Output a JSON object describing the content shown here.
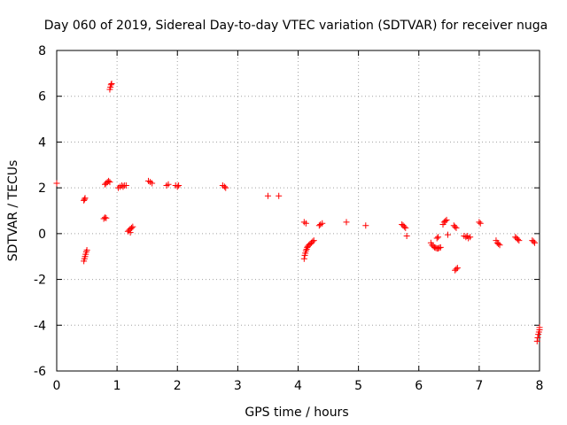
{
  "chart_data": {
    "type": "scatter",
    "title": "Day 060 of 2019, Sidereal Day-to-day VTEC variation (SDTVAR) for receiver nuga",
    "xlabel": "GPS time / hours",
    "ylabel": "SDTVAR / TECUs",
    "xlim": [
      0,
      8
    ],
    "ylim": [
      -6,
      8
    ],
    "xticks": [
      0,
      1,
      2,
      3,
      4,
      5,
      6,
      7,
      8
    ],
    "yticks": [
      -6,
      -4,
      -2,
      0,
      2,
      4,
      6,
      8
    ],
    "grid": true,
    "marker": "plus",
    "color": "#ff0000",
    "series": [
      {
        "name": "SDTVAR",
        "points": [
          [
            0.0,
            2.2
          ],
          [
            0.45,
            1.45
          ],
          [
            0.46,
            1.5
          ],
          [
            0.47,
            1.55
          ],
          [
            0.45,
            -1.2
          ],
          [
            0.46,
            -1.1
          ],
          [
            0.47,
            -1.0
          ],
          [
            0.48,
            -0.9
          ],
          [
            0.49,
            -0.8
          ],
          [
            0.5,
            -0.72
          ],
          [
            0.78,
            0.65
          ],
          [
            0.8,
            0.7
          ],
          [
            0.82,
            0.68
          ],
          [
            0.8,
            2.15
          ],
          [
            0.82,
            2.2
          ],
          [
            0.84,
            2.25
          ],
          [
            0.86,
            2.3
          ],
          [
            0.88,
            2.25
          ],
          [
            0.88,
            6.3
          ],
          [
            0.89,
            6.4
          ],
          [
            0.9,
            6.5
          ],
          [
            0.91,
            6.55
          ],
          [
            1.02,
            2.0
          ],
          [
            1.05,
            2.05
          ],
          [
            1.08,
            2.1
          ],
          [
            1.1,
            2.05
          ],
          [
            1.12,
            2.1
          ],
          [
            1.15,
            2.1
          ],
          [
            1.18,
            0.1
          ],
          [
            1.2,
            0.15
          ],
          [
            1.22,
            0.2
          ],
          [
            1.24,
            0.25
          ],
          [
            1.26,
            0.3
          ],
          [
            1.22,
            0.05
          ],
          [
            1.52,
            2.3
          ],
          [
            1.55,
            2.25
          ],
          [
            1.58,
            2.2
          ],
          [
            1.82,
            2.1
          ],
          [
            1.85,
            2.15
          ],
          [
            1.97,
            2.1
          ],
          [
            2.0,
            2.05
          ],
          [
            2.02,
            2.1
          ],
          [
            2.75,
            2.1
          ],
          [
            2.78,
            2.05
          ],
          [
            2.8,
            2.0
          ],
          [
            3.5,
            1.65
          ],
          [
            3.68,
            1.65
          ],
          [
            4.1,
            0.5
          ],
          [
            4.13,
            0.45
          ],
          [
            4.1,
            -1.1
          ],
          [
            4.11,
            -0.95
          ],
          [
            4.12,
            -0.85
          ],
          [
            4.13,
            -0.75
          ],
          [
            4.14,
            -0.68
          ],
          [
            4.15,
            -0.6
          ],
          [
            4.16,
            -0.55
          ],
          [
            4.18,
            -0.5
          ],
          [
            4.2,
            -0.45
          ],
          [
            4.22,
            -0.4
          ],
          [
            4.24,
            -0.35
          ],
          [
            4.26,
            -0.3
          ],
          [
            4.35,
            0.35
          ],
          [
            4.37,
            0.4
          ],
          [
            4.4,
            0.45
          ],
          [
            4.8,
            0.5
          ],
          [
            5.12,
            0.35
          ],
          [
            5.72,
            0.4
          ],
          [
            5.74,
            0.35
          ],
          [
            5.76,
            0.3
          ],
          [
            5.78,
            0.25
          ],
          [
            5.8,
            -0.1
          ],
          [
            6.2,
            -0.4
          ],
          [
            6.22,
            -0.5
          ],
          [
            6.24,
            -0.55
          ],
          [
            6.26,
            -0.6
          ],
          [
            6.28,
            -0.62
          ],
          [
            6.3,
            -0.65
          ],
          [
            6.32,
            -0.65
          ],
          [
            6.34,
            -0.62
          ],
          [
            6.36,
            -0.6
          ],
          [
            6.3,
            -0.2
          ],
          [
            6.32,
            -0.15
          ],
          [
            6.4,
            0.4
          ],
          [
            6.42,
            0.5
          ],
          [
            6.44,
            0.55
          ],
          [
            6.46,
            0.6
          ],
          [
            6.48,
            -0.05
          ],
          [
            6.58,
            0.35
          ],
          [
            6.6,
            0.3
          ],
          [
            6.62,
            0.25
          ],
          [
            6.6,
            -1.6
          ],
          [
            6.62,
            -1.55
          ],
          [
            6.64,
            -1.5
          ],
          [
            6.75,
            -0.1
          ],
          [
            6.78,
            -0.15
          ],
          [
            6.8,
            -0.1
          ],
          [
            6.82,
            -0.2
          ],
          [
            6.85,
            -0.15
          ],
          [
            7.0,
            0.5
          ],
          [
            7.02,
            0.45
          ],
          [
            7.28,
            -0.3
          ],
          [
            7.3,
            -0.4
          ],
          [
            7.32,
            -0.45
          ],
          [
            7.34,
            -0.5
          ],
          [
            7.6,
            -0.15
          ],
          [
            7.62,
            -0.2
          ],
          [
            7.64,
            -0.25
          ],
          [
            7.66,
            -0.3
          ],
          [
            7.88,
            -0.3
          ],
          [
            7.9,
            -0.35
          ],
          [
            7.92,
            -0.4
          ],
          [
            7.96,
            -4.7
          ],
          [
            7.97,
            -4.55
          ],
          [
            7.98,
            -4.4
          ],
          [
            7.99,
            -4.3
          ],
          [
            8.0,
            -4.2
          ],
          [
            8.0,
            -4.1
          ]
        ]
      }
    ]
  }
}
